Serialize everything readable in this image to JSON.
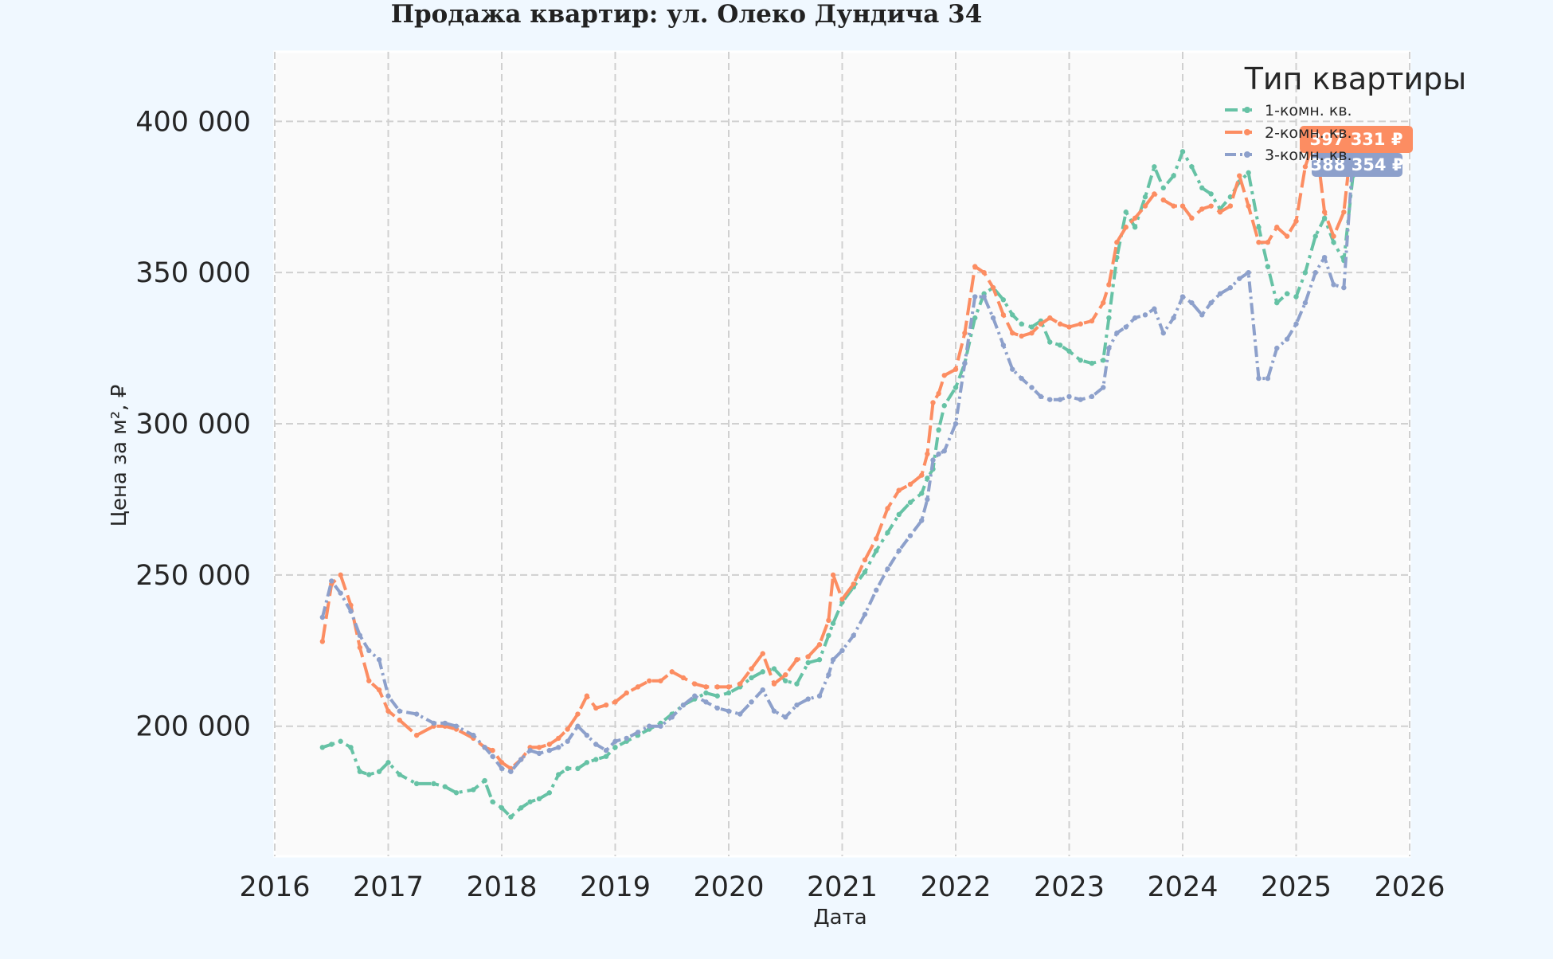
{
  "chart_data": {
    "type": "line",
    "title": "Продажа квартир: ул. Олеко Дундича 34",
    "xlabel": "Дата",
    "ylabel": "Цена за м², ₽",
    "xlim": [
      2016.0,
      2026.0
    ],
    "ylim": [
      157000,
      423000
    ],
    "x_ticks": [
      2016,
      2017,
      2018,
      2019,
      2020,
      2021,
      2022,
      2023,
      2024,
      2025,
      2026
    ],
    "x_tick_labels": [
      "2016",
      "2017",
      "2018",
      "2019",
      "2020",
      "2021",
      "2022",
      "2023",
      "2024",
      "2025",
      "2026"
    ],
    "y_ticks": [
      200000,
      250000,
      300000,
      350000,
      400000
    ],
    "y_tick_labels": [
      "200 000",
      "250 000",
      "300 000",
      "350 000",
      "400 000"
    ],
    "grid": true,
    "legend_title": "Тип квартиры",
    "legend_position": "top-right",
    "series": [
      {
        "name": "1-комн. кв.",
        "color": "#66c2a5",
        "x": [
          2016.42,
          2016.5,
          2016.58,
          2016.67,
          2016.75,
          2016.83,
          2016.92,
          2017.0,
          2017.1,
          2017.25,
          2017.4,
          2017.5,
          2017.6,
          2017.75,
          2017.85,
          2017.92,
          2018.0,
          2018.08,
          2018.17,
          2018.25,
          2018.33,
          2018.42,
          2018.5,
          2018.58,
          2018.67,
          2018.75,
          2018.83,
          2018.92,
          2019.0,
          2019.1,
          2019.2,
          2019.3,
          2019.4,
          2019.5,
          2019.6,
          2019.7,
          2019.8,
          2019.9,
          2020.0,
          2020.1,
          2020.2,
          2020.3,
          2020.4,
          2020.5,
          2020.6,
          2020.7,
          2020.8,
          2020.88,
          2020.92,
          2021.0,
          2021.1,
          2021.2,
          2021.3,
          2021.4,
          2021.5,
          2021.6,
          2021.7,
          2021.75,
          2021.8,
          2021.85,
          2021.9,
          2022.0,
          2022.08,
          2022.17,
          2022.25,
          2022.33,
          2022.42,
          2022.5,
          2022.58,
          2022.67,
          2022.75,
          2022.83,
          2022.92,
          2023.0,
          2023.1,
          2023.2,
          2023.3,
          2023.35,
          2023.42,
          2023.5,
          2023.58,
          2023.67,
          2023.75,
          2023.83,
          2023.92,
          2024.0,
          2024.08,
          2024.17,
          2024.25,
          2024.33,
          2024.42,
          2024.5,
          2024.58,
          2024.67,
          2024.75,
          2024.83,
          2024.92,
          2025.0,
          2025.08,
          2025.17,
          2025.25,
          2025.33,
          2025.42,
          2025.5
        ],
        "values": [
          193000,
          194000,
          195000,
          193000,
          185000,
          184000,
          185000,
          188000,
          184000,
          181000,
          181000,
          180000,
          178000,
          179000,
          182000,
          175000,
          173000,
          170000,
          173000,
          175000,
          176000,
          178000,
          184000,
          186000,
          186000,
          188000,
          189000,
          190000,
          193000,
          195000,
          197000,
          199000,
          201000,
          204000,
          207000,
          209000,
          211000,
          210000,
          211000,
          213000,
          216000,
          218000,
          219000,
          215000,
          214000,
          221000,
          222000,
          230000,
          234000,
          241000,
          246000,
          251000,
          258000,
          264000,
          270000,
          274000,
          277000,
          282000,
          285000,
          298000,
          306000,
          312000,
          320000,
          335000,
          343000,
          345000,
          341000,
          336000,
          333000,
          332000,
          334000,
          327000,
          326000,
          324000,
          321000,
          320000,
          321000,
          335000,
          355000,
          370000,
          365000,
          375000,
          385000,
          378000,
          382000,
          390000,
          385000,
          378000,
          376000,
          371000,
          375000,
          380000,
          383000,
          365000,
          352000,
          340000,
          343000,
          342000,
          350000,
          362000,
          368000,
          360000,
          354000,
          382000
        ]
      },
      {
        "name": "2-комн. кв.",
        "color": "#fc8d62",
        "x": [
          2016.42,
          2016.5,
          2016.58,
          2016.67,
          2016.75,
          2016.83,
          2016.92,
          2017.0,
          2017.1,
          2017.25,
          2017.4,
          2017.5,
          2017.6,
          2017.75,
          2017.85,
          2017.92,
          2018.0,
          2018.08,
          2018.17,
          2018.25,
          2018.33,
          2018.42,
          2018.5,
          2018.58,
          2018.67,
          2018.75,
          2018.83,
          2018.92,
          2019.0,
          2019.1,
          2019.2,
          2019.3,
          2019.4,
          2019.5,
          2019.6,
          2019.7,
          2019.8,
          2019.9,
          2020.0,
          2020.1,
          2020.2,
          2020.3,
          2020.4,
          2020.5,
          2020.6,
          2020.7,
          2020.8,
          2020.88,
          2020.92,
          2021.0,
          2021.1,
          2021.2,
          2021.3,
          2021.4,
          2021.5,
          2021.6,
          2021.7,
          2021.75,
          2021.8,
          2021.85,
          2021.9,
          2022.0,
          2022.08,
          2022.17,
          2022.25,
          2022.33,
          2022.42,
          2022.5,
          2022.58,
          2022.67,
          2022.75,
          2022.83,
          2022.92,
          2023.0,
          2023.1,
          2023.2,
          2023.3,
          2023.35,
          2023.42,
          2023.5,
          2023.58,
          2023.67,
          2023.75,
          2023.83,
          2023.92,
          2024.0,
          2024.08,
          2024.17,
          2024.25,
          2024.33,
          2024.42,
          2024.5,
          2024.58,
          2024.67,
          2024.75,
          2024.83,
          2024.92,
          2025.0,
          2025.08,
          2025.17,
          2025.25,
          2025.33,
          2025.42,
          2025.5
        ],
        "values": [
          228000,
          247000,
          250000,
          240000,
          226000,
          215000,
          212000,
          205000,
          202000,
          197000,
          200000,
          200000,
          199000,
          196000,
          193000,
          192000,
          188000,
          186000,
          189000,
          193000,
          193000,
          194000,
          196000,
          199000,
          204000,
          210000,
          206000,
          207000,
          208000,
          211000,
          213000,
          215000,
          215000,
          218000,
          216000,
          214000,
          213000,
          213000,
          213000,
          214000,
          219000,
          224000,
          214000,
          217000,
          222000,
          223000,
          227000,
          235000,
          250000,
          242000,
          247000,
          255000,
          262000,
          272000,
          278000,
          280000,
          283000,
          290000,
          307000,
          310000,
          316000,
          318000,
          330000,
          352000,
          350000,
          345000,
          336000,
          330000,
          329000,
          330000,
          333000,
          335000,
          333000,
          332000,
          333000,
          334000,
          340000,
          346000,
          360000,
          365000,
          368000,
          372000,
          376000,
          374000,
          372000,
          372000,
          368000,
          371000,
          372000,
          370000,
          372000,
          382000,
          372000,
          360000,
          360000,
          365000,
          362000,
          367000,
          385000,
          395000,
          370000,
          362000,
          370000,
          397331
        ]
      },
      {
        "name": "3-комн. кв.",
        "color": "#8da0cb",
        "x": [
          2016.42,
          2016.5,
          2016.58,
          2016.67,
          2016.75,
          2016.83,
          2016.92,
          2017.0,
          2017.1,
          2017.25,
          2017.4,
          2017.5,
          2017.6,
          2017.75,
          2017.85,
          2017.92,
          2018.0,
          2018.08,
          2018.17,
          2018.25,
          2018.33,
          2018.42,
          2018.5,
          2018.58,
          2018.67,
          2018.75,
          2018.83,
          2018.92,
          2019.0,
          2019.1,
          2019.2,
          2019.3,
          2019.4,
          2019.5,
          2019.6,
          2019.7,
          2019.8,
          2019.9,
          2020.0,
          2020.1,
          2020.2,
          2020.3,
          2020.4,
          2020.5,
          2020.6,
          2020.7,
          2020.8,
          2020.88,
          2020.92,
          2021.0,
          2021.1,
          2021.2,
          2021.3,
          2021.4,
          2021.5,
          2021.6,
          2021.7,
          2021.75,
          2021.8,
          2021.85,
          2021.9,
          2022.0,
          2022.08,
          2022.17,
          2022.25,
          2022.33,
          2022.42,
          2022.5,
          2022.58,
          2022.67,
          2022.75,
          2022.83,
          2022.92,
          2023.0,
          2023.1,
          2023.2,
          2023.3,
          2023.35,
          2023.42,
          2023.5,
          2023.58,
          2023.67,
          2023.75,
          2023.83,
          2023.92,
          2024.0,
          2024.08,
          2024.17,
          2024.25,
          2024.33,
          2024.42,
          2024.5,
          2024.58,
          2024.67,
          2024.75,
          2024.83,
          2024.92,
          2025.0,
          2025.08,
          2025.17,
          2025.25,
          2025.33,
          2025.42,
          2025.5
        ],
        "values": [
          236000,
          248000,
          244000,
          238000,
          230000,
          225000,
          222000,
          210000,
          205000,
          204000,
          201000,
          201000,
          200000,
          197000,
          193000,
          190000,
          186000,
          185000,
          189000,
          192000,
          191000,
          192000,
          193000,
          195000,
          200000,
          197000,
          194000,
          192000,
          195000,
          196000,
          198000,
          200000,
          200000,
          203000,
          207000,
          210000,
          208000,
          206000,
          205000,
          204000,
          208000,
          212000,
          205000,
          203000,
          207000,
          209000,
          210000,
          217000,
          222000,
          225000,
          230000,
          237000,
          245000,
          252000,
          258000,
          263000,
          268000,
          275000,
          288000,
          290000,
          291000,
          300000,
          320000,
          342000,
          342000,
          335000,
          326000,
          318000,
          315000,
          312000,
          309000,
          308000,
          308000,
          309000,
          308000,
          309000,
          312000,
          325000,
          330000,
          332000,
          335000,
          336000,
          338000,
          330000,
          335000,
          342000,
          340000,
          336000,
          340000,
          343000,
          345000,
          348000,
          350000,
          315000,
          315000,
          325000,
          328000,
          333000,
          340000,
          350000,
          355000,
          346000,
          345000,
          388354
        ]
      }
    ],
    "end_labels": [
      "397 331 ₽",
      "388 354 ₽"
    ]
  }
}
